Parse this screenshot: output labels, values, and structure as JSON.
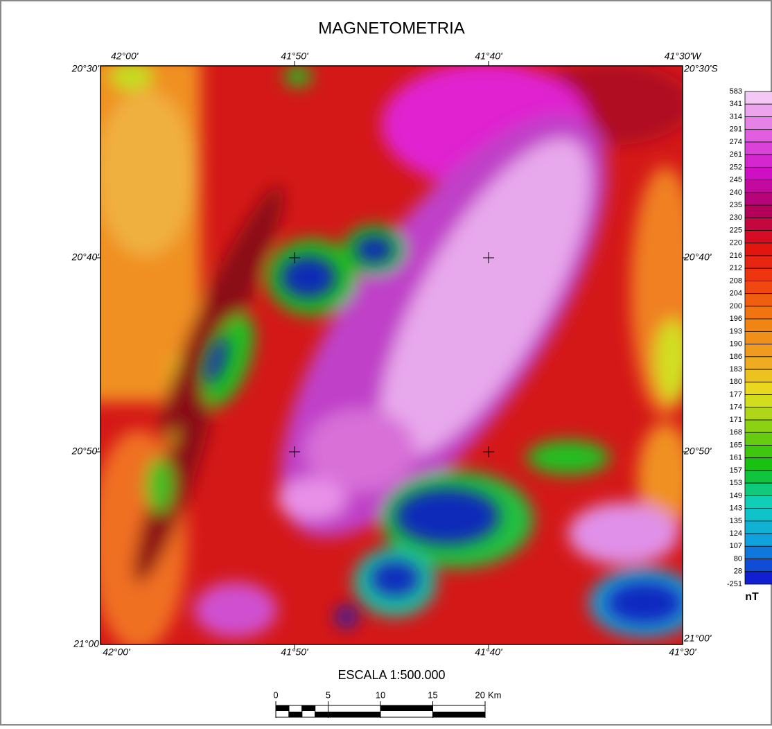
{
  "title": "MAGNETOMETRIA",
  "map": {
    "top_labels": [
      "42°00'",
      "41°50'",
      "41°40'",
      "41°30'W"
    ],
    "bottom_labels": [
      "42°00'",
      "41°50'",
      "41°40'",
      "41°30'"
    ],
    "left_labels": [
      "20°30'",
      "20°40'",
      "20°50'",
      "21°00"
    ],
    "right_labels": [
      "20°30'S",
      "20°40'",
      "20°50'",
      "21°00'"
    ]
  },
  "colorbar": {
    "labels": [
      583,
      341,
      314,
      291,
      274,
      261,
      252,
      245,
      240,
      235,
      230,
      225,
      220,
      216,
      212,
      208,
      204,
      200,
      196,
      193,
      190,
      186,
      183,
      180,
      177,
      174,
      171,
      168,
      165,
      161,
      157,
      153,
      149,
      143,
      135,
      124,
      107,
      80,
      28,
      -251
    ],
    "colors": [
      "#f4c8f4",
      "#e060e0",
      "#d010c8",
      "#b00060",
      "#e01010",
      "#f04010",
      "#f08010",
      "#f0a020",
      "#e8e020",
      "#80d010",
      "#10c010",
      "#10d0c0",
      "#10a0e0",
      "#1020d0"
    ],
    "unit": "nT"
  },
  "scale": {
    "title": "ESCALA 1:500.000",
    "ticks": [
      0,
      5,
      10,
      15,
      20
    ],
    "unit": "Km"
  }
}
